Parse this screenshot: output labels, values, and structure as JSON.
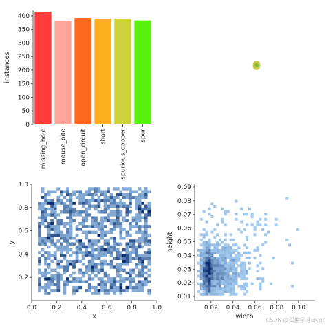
{
  "chart_data": [
    {
      "type": "bar",
      "categories": [
        "missing_hole",
        "mouse_bite",
        "open_circuit",
        "short",
        "spurious_copper",
        "spur"
      ],
      "values": [
        415,
        382,
        392,
        390,
        390,
        383
      ],
      "colors": [
        "#ff3b3b",
        "#ffa59a",
        "#ff6a1e",
        "#ffb020",
        "#cfd33a",
        "#5af012"
      ],
      "ylabel": "instances",
      "ylim": [
        0,
        420
      ],
      "yticks": [
        0,
        50,
        100,
        150,
        200,
        250,
        300,
        350,
        400
      ],
      "grid": false
    },
    {
      "type": "scatter",
      "points": [
        {
          "x": 0.5,
          "y": 0.5
        }
      ],
      "colors": [
        "#c7c22a",
        "#7cbc3c"
      ],
      "note_axes": "hidden"
    },
    {
      "type": "heatmap",
      "xlabel": "x",
      "ylabel": "y",
      "xlim": [
        0.0,
        1.0
      ],
      "ylim": [
        0.0,
        1.0
      ],
      "xticks": [
        "0.0",
        "0.2",
        "0.4",
        "0.6",
        "0.8",
        "1.0"
      ],
      "yticks": [
        "0.2",
        "0.4",
        "0.6",
        "0.8",
        "1.0"
      ],
      "yticks_values": [
        0.2,
        0.4,
        0.6,
        0.8,
        1.0
      ],
      "xticks_values": [
        0.0,
        0.2,
        0.4,
        0.6,
        0.8,
        1.0
      ],
      "data_range": {
        "x": [
          0.05,
          0.95
        ],
        "y": [
          0.07,
          0.96
        ]
      },
      "color": "#2e7fd0",
      "bins": 40
    },
    {
      "type": "heatmap",
      "xlabel": "width",
      "ylabel": "height",
      "xlim": [
        0.005,
        0.115
      ],
      "ylim": [
        0.007,
        0.092
      ],
      "xticks": [
        "0.02",
        "0.04",
        "0.06",
        "0.08",
        "0.10"
      ],
      "xticks_values": [
        0.02,
        0.04,
        0.06,
        0.08,
        0.1
      ],
      "yticks": [
        "0.01",
        "0.02",
        "0.03",
        "0.04",
        "0.05",
        "0.06",
        "0.07",
        "0.08",
        "0.09"
      ],
      "yticks_values": [
        0.01,
        0.02,
        0.03,
        0.04,
        0.05,
        0.06,
        0.07,
        0.08,
        0.09
      ],
      "density_peak": {
        "x": 0.02,
        "y": 0.025
      },
      "color": "#2e7fd0",
      "bins": 45
    }
  ],
  "watermark": "CSDN @深度学习lover"
}
